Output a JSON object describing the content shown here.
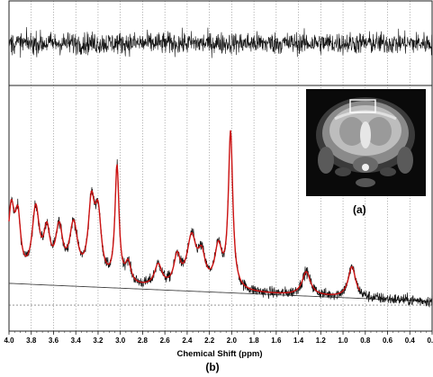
{
  "chart_data": {
    "type": "line",
    "xlabel": "Chemical Shift (ppm)",
    "xlim": [
      4.0,
      0.2
    ],
    "x_reversed": true,
    "x_ticks": [
      "4.0",
      "3.8",
      "3.6",
      "3.4",
      "3.2",
      "3.0",
      "2.8",
      "2.6",
      "2.4",
      "2.2",
      "2.0",
      "1.8",
      "1.6",
      "1.4",
      "1.2",
      "1.0",
      "0.8",
      "0.6",
      "0.4",
      "0.2"
    ],
    "ylabel": "",
    "ylim": [
      0,
      1
    ],
    "grid": "vertical dotted",
    "panel_label": "(b)",
    "inset_label": "(a)",
    "series": [
      {
        "id": "spectrum",
        "color": "#111111",
        "peaks": [
          {
            "ppm": 3.98,
            "height": 0.38,
            "width": 0.035
          },
          {
            "ppm": 3.92,
            "height": 0.3,
            "width": 0.03
          },
          {
            "ppm": 3.76,
            "height": 0.38,
            "width": 0.04
          },
          {
            "ppm": 3.66,
            "height": 0.24,
            "width": 0.035
          },
          {
            "ppm": 3.55,
            "height": 0.27,
            "width": 0.04
          },
          {
            "ppm": 3.42,
            "height": 0.3,
            "width": 0.045
          },
          {
            "ppm": 3.26,
            "height": 0.4,
            "width": 0.035
          },
          {
            "ppm": 3.2,
            "height": 0.34,
            "width": 0.035
          },
          {
            "ppm": 3.03,
            "height": 0.64,
            "width": 0.022
          },
          {
            "ppm": 2.93,
            "height": 0.11,
            "width": 0.03
          },
          {
            "ppm": 2.66,
            "height": 0.12,
            "width": 0.04
          },
          {
            "ppm": 2.49,
            "height": 0.16,
            "width": 0.035
          },
          {
            "ppm": 2.36,
            "height": 0.27,
            "width": 0.05
          },
          {
            "ppm": 2.27,
            "height": 0.16,
            "width": 0.04
          },
          {
            "ppm": 2.12,
            "height": 0.22,
            "width": 0.04
          },
          {
            "ppm": 2.01,
            "height": 0.86,
            "width": 0.024
          },
          {
            "ppm": 1.33,
            "height": 0.13,
            "width": 0.045
          },
          {
            "ppm": 0.92,
            "height": 0.17,
            "width": 0.04
          }
        ],
        "baseline_start": 0.055,
        "baseline_end": -0.045,
        "noise_amplitude": 0.03
      },
      {
        "id": "fit",
        "color": "#cc1111",
        "xlim": [
          4.0,
          0.85
        ]
      },
      {
        "id": "baseline",
        "color": "#444444"
      },
      {
        "id": "residual",
        "color": "#111111",
        "noise_amplitude": 0.5
      }
    ]
  }
}
